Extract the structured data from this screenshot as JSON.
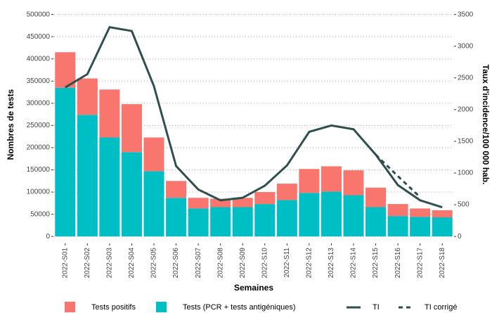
{
  "chart_data": {
    "type": "bar",
    "y_label": "Nombres de tests",
    "y2_label": "Taux d'incidence/100 000 hab.",
    "x_label": "Semaines",
    "categories": [
      "2022-S01",
      "2022-S02",
      "2022-S03",
      "2022-S04",
      "2022-S05",
      "2022-S06",
      "2022-S07",
      "2022-S08",
      "2022-S09",
      "2022-S10",
      "2022-S11",
      "2022-S12",
      "2022-S13",
      "2022-S14",
      "2022-S15",
      "2022-S16",
      "2022-S17",
      "2022-S18"
    ],
    "series": [
      {
        "name": "Tests positifs",
        "type": "bar",
        "color": "#f8766d",
        "values": [
          80000,
          82000,
          108000,
          108000,
          76000,
          38000,
          24000,
          19000,
          21000,
          27000,
          37000,
          54000,
          57000,
          56000,
          44000,
          27000,
          19000,
          16000
        ]
      },
      {
        "name": "Tests (PCR + tests antigéniques)",
        "type": "bar",
        "color": "#00bfc4",
        "values": [
          335000,
          274000,
          223000,
          190000,
          147000,
          87000,
          63000,
          66000,
          66000,
          73000,
          82000,
          98000,
          101000,
          93000,
          66000,
          46000,
          44000,
          43000
        ]
      },
      {
        "name": "TI",
        "type": "line",
        "axis": "y2",
        "color": "#2f4f4f",
        "dashed": false,
        "values": [
          2350,
          2560,
          3300,
          3240,
          2370,
          1110,
          740,
          570,
          610,
          800,
          1120,
          1650,
          1750,
          1690,
          1290,
          810,
          570,
          460
        ]
      },
      {
        "name": "TI corrigé",
        "type": "line",
        "axis": "y2",
        "color": "#2f4f4f",
        "dashed": true,
        "values": [
          null,
          null,
          null,
          null,
          null,
          null,
          null,
          null,
          null,
          null,
          null,
          null,
          null,
          null,
          1290,
          950,
          620,
          null
        ]
      }
    ],
    "ylim": [
      -14000,
      520000
    ],
    "yticks": [
      0,
      50000,
      100000,
      150000,
      200000,
      250000,
      300000,
      350000,
      400000,
      450000,
      500000
    ],
    "y2lim": [
      -98,
      3640
    ],
    "y2ticks": [
      0,
      500,
      1000,
      1500,
      2000,
      2500,
      3000,
      3500
    ],
    "grid": true,
    "legend": "bottom"
  }
}
